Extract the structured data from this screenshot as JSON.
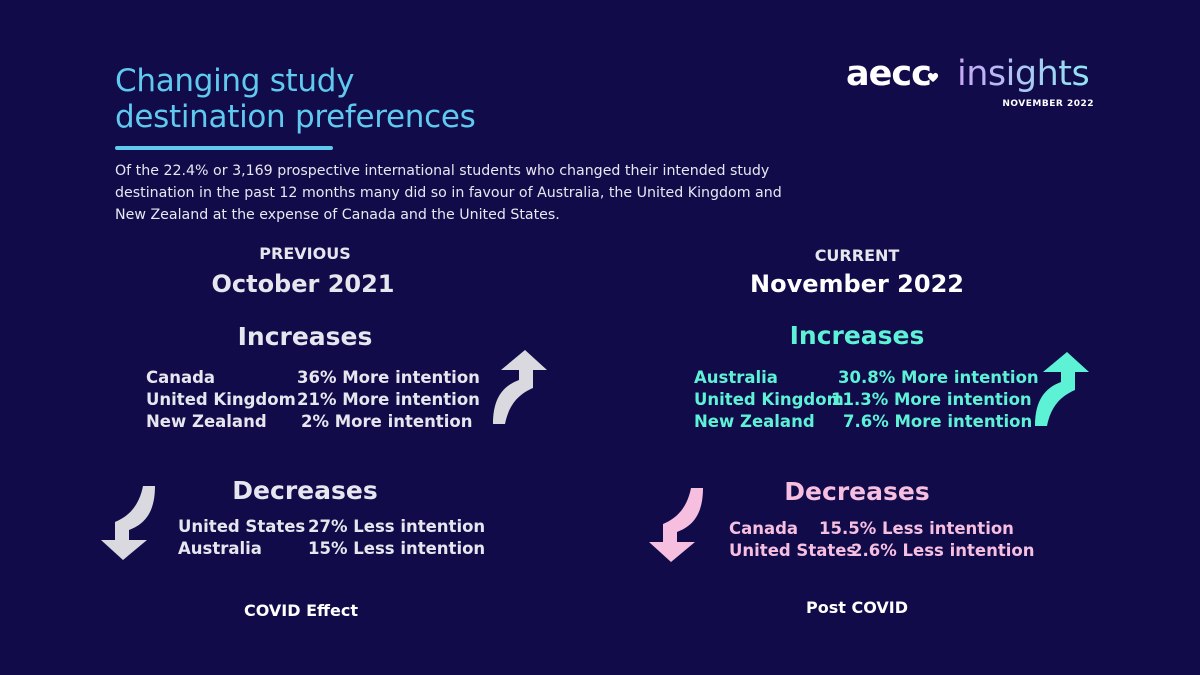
{
  "title_line1": "Changing study",
  "title_line2": "destination preferences",
  "intro": "Of the 22.4% or 3,169 prospective international students who changed their intended study destination in the past 12 months many did so in favour of Australia, the United Kingdom and New Zealand at the expense of Canada and the United States.",
  "logo": {
    "brand": "aecc",
    "product": "insights",
    "date": "NOVEMBER 2022",
    "colors": {
      "brand": "#ffffff",
      "product_start": "#c9a6f5",
      "product_end": "#8fe6f0"
    }
  },
  "colors": {
    "background": "#110b4a",
    "title": "#5fc9ee",
    "previous": "#e6e6ee",
    "current_increase": "#5df2d6",
    "current_decrease": "#f6bfe0"
  },
  "previous": {
    "label": "PREVIOUS",
    "date": "October 2021",
    "increases_heading": "Increases",
    "increases": [
      {
        "country": "Canada",
        "change": "36% More intention"
      },
      {
        "country": "United Kingdom",
        "change": "21% More intention"
      },
      {
        "country": "New Zealand",
        "change": "2% More intention"
      }
    ],
    "decreases_heading": "Decreases",
    "decreases": [
      {
        "country": "United States",
        "change": "27% Less intention"
      },
      {
        "country": "Australia",
        "change": "15% Less intention"
      }
    ],
    "footer": "COVID Effect",
    "up_icon": "curved-arrow-up-icon",
    "down_icon": "curved-arrow-down-icon"
  },
  "current": {
    "label": "CURRENT",
    "date": "November 2022",
    "increases_heading": "Increases",
    "increases": [
      {
        "country": "Australia",
        "change": "30.8% More intention"
      },
      {
        "country": "United Kingdom",
        "change": "11.3% More intention"
      },
      {
        "country": "New Zealand",
        "change": "7.6% More intention"
      }
    ],
    "decreases_heading": "Decreases",
    "decreases": [
      {
        "country": "Canada",
        "change": "15.5% Less intention"
      },
      {
        "country": "United States",
        "change": "2.6% Less intention"
      }
    ],
    "footer": "Post COVID",
    "up_icon": "curved-arrow-up-icon",
    "down_icon": "curved-arrow-down-icon"
  }
}
